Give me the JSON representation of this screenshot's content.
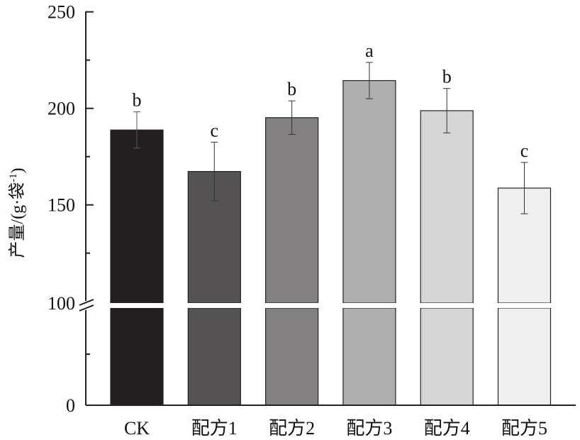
{
  "chart_data": {
    "type": "bar",
    "title": "",
    "xlabel": "",
    "ylabel": "产量/(g·袋⁻¹)",
    "ylabel_parts": {
      "main": "产量/(g·袋",
      "sup": "-1",
      "close": ")"
    },
    "categories": [
      "CK",
      "配方1",
      "配方2",
      "配方3",
      "配方4",
      "配方5"
    ],
    "values": [
      188.8,
      167.3,
      195.2,
      214.4,
      198.8,
      158.7
    ],
    "errors": [
      9.4,
      15.2,
      8.7,
      9.4,
      11.5,
      13.3
    ],
    "significance": [
      "b",
      "c",
      "b",
      "a",
      "b",
      "c"
    ],
    "colors": [
      "#231f20",
      "#545253",
      "#828081",
      "#b0afaf",
      "#d6d5d5",
      "#f0eff0"
    ],
    "ylim": [
      0,
      250
    ],
    "axis_break": [
      100,
      100
    ],
    "yticks_lower": [
      0
    ],
    "yticks_upper": [
      100,
      150,
      200,
      250
    ],
    "ytick_labels": [
      "0",
      "100",
      "150",
      "200",
      "250"
    ],
    "grid": false
  }
}
